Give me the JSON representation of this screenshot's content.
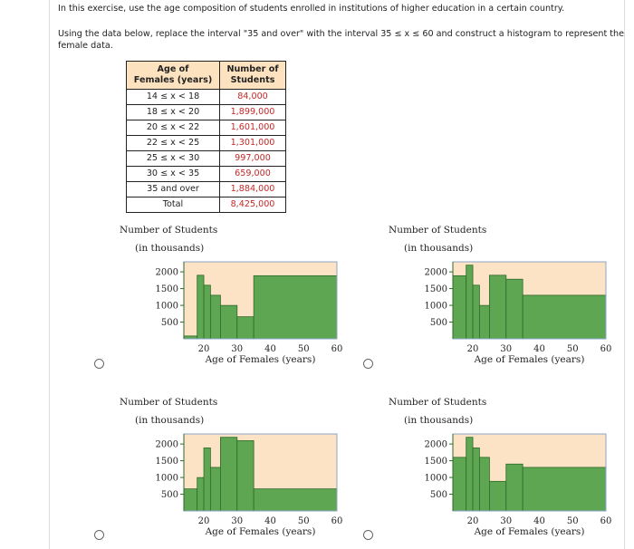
{
  "intro": "In this exercise, use the age composition of students enrolled in institutions of higher education in a certain country.",
  "instruction_line1": "Using the data below, replace the interval \"35 and over\" with the interval 35 ≤ x ≤ 60 and construct a histogram to represent the",
  "instruction_line2": "female data.",
  "table": {
    "header_col1_line1": "Age of",
    "header_col1_line2": "Females (years)",
    "header_col2_line1": "Number of",
    "header_col2_line2": "Students",
    "rows": [
      {
        "age": "14 ≤ x < 18",
        "students": "84,000"
      },
      {
        "age": "18 ≤ x < 20",
        "students": "1,899,000"
      },
      {
        "age": "20 ≤ x < 22",
        "students": "1,601,000"
      },
      {
        "age": "22 ≤ x < 25",
        "students": "1,301,000"
      },
      {
        "age": "25 ≤ x < 30",
        "students": "997,000"
      },
      {
        "age": "30 ≤ x < 35",
        "students": "659,000"
      },
      {
        "age": "35 and over",
        "students": "1,884,000"
      },
      {
        "age": "Total",
        "students": "8,425,000"
      }
    ]
  },
  "colors": {
    "bar_fill": "#5ea651",
    "bar_stroke": "#2e6a2a",
    "plot_bg": "#fde3c5",
    "plot_border": "#8aa6c9",
    "value_red": "#c62828"
  },
  "chart_data": [
    {
      "type": "bar",
      "title_line1": "Number of Students",
      "title_line2": "(in thousands)",
      "xlabel": "Age of Females (years)",
      "xlim": [
        14,
        60
      ],
      "ylim": [
        0,
        2300
      ],
      "xticks": [
        "20",
        "30",
        "40",
        "50",
        "60"
      ],
      "yticks": [
        "2000",
        "1500",
        "1000",
        "500"
      ],
      "bins": [
        [
          14,
          18,
          84
        ],
        [
          18,
          20,
          1899
        ],
        [
          20,
          22,
          1601
        ],
        [
          22,
          25,
          1301
        ],
        [
          25,
          30,
          997
        ],
        [
          30,
          35,
          659
        ],
        [
          35,
          60,
          1884
        ]
      ]
    },
    {
      "type": "bar",
      "title_line1": "Number of Students",
      "title_line2": "(in thousands)",
      "xlabel": "Age of Females (years)",
      "xlim": [
        14,
        60
      ],
      "ylim": [
        0,
        2300
      ],
      "xticks": [
        "20",
        "30",
        "40",
        "50",
        "60"
      ],
      "yticks": [
        "2000",
        "1500",
        "1000",
        "500"
      ],
      "bins": [
        [
          14,
          18,
          1884
        ],
        [
          18,
          20,
          2200
        ],
        [
          20,
          22,
          1601
        ],
        [
          22,
          25,
          997
        ],
        [
          25,
          30,
          1899
        ],
        [
          30,
          35,
          1780
        ],
        [
          35,
          60,
          1301
        ]
      ]
    },
    {
      "type": "bar",
      "title_line1": "Number of Students",
      "title_line2": "(in thousands)",
      "xlabel": "Age of Females (years)",
      "xlim": [
        14,
        60
      ],
      "ylim": [
        0,
        2300
      ],
      "xticks": [
        "20",
        "30",
        "40",
        "50",
        "60"
      ],
      "yticks": [
        "2000",
        "1500",
        "1000",
        "500"
      ],
      "bins": [
        [
          14,
          18,
          659
        ],
        [
          18,
          20,
          997
        ],
        [
          20,
          22,
          1884
        ],
        [
          22,
          25,
          1301
        ],
        [
          25,
          30,
          2200
        ],
        [
          30,
          35,
          2100
        ],
        [
          35,
          60,
          659
        ]
      ]
    },
    {
      "type": "bar",
      "title_line1": "Number of Students",
      "title_line2": "(in thousands)",
      "xlabel": "Age of Females (years)",
      "xlim": [
        14,
        60
      ],
      "ylim": [
        0,
        2300
      ],
      "xticks": [
        "20",
        "30",
        "40",
        "50",
        "60"
      ],
      "yticks": [
        "2000",
        "1500",
        "1000",
        "500"
      ],
      "bins": [
        [
          14,
          18,
          1601
        ],
        [
          18,
          20,
          2200
        ],
        [
          20,
          22,
          1884
        ],
        [
          22,
          25,
          1601
        ],
        [
          25,
          30,
          884
        ],
        [
          30,
          35,
          1400
        ],
        [
          35,
          60,
          1301
        ]
      ]
    }
  ]
}
